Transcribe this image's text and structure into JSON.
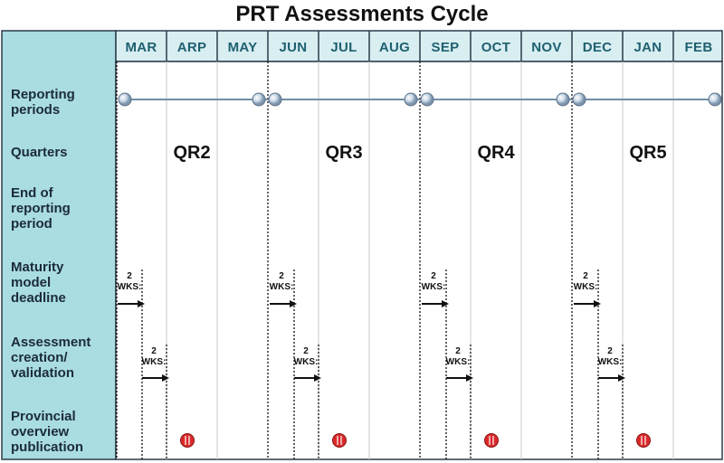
{
  "title": "PRT Assessments Cycle",
  "colors": {
    "label_panel": "#a9dde2",
    "header_band": "#d8eef1",
    "month_text": "#1f6070",
    "timeline": "#6f8fa8",
    "node_fill": "#c7d6e6",
    "publication_marker": "#d92a2a"
  },
  "months": [
    "MAR",
    "ARP",
    "MAY",
    "JUN",
    "JUL",
    "AUG",
    "SEP",
    "OCT",
    "NOV",
    "DEC",
    "JAN",
    "FEB"
  ],
  "rows": [
    {
      "label": "Reporting\nperiods"
    },
    {
      "label": "Quarters"
    },
    {
      "label": "End of\nreporting\nperiod"
    },
    {
      "label": "Maturity\nmodel\ndeadline"
    },
    {
      "label": "Assessment\ncreation/\nvalidation"
    },
    {
      "label": "Provincial\noverview\npublication"
    }
  ],
  "quarters": [
    "QR2",
    "QR3",
    "QR4",
    "QR5"
  ],
  "duration_label": "2\nWKS:",
  "icons": {
    "reporting_node": "circle-node-icon",
    "arrow": "right-arrow-icon",
    "publication": "publication-marker-icon"
  }
}
